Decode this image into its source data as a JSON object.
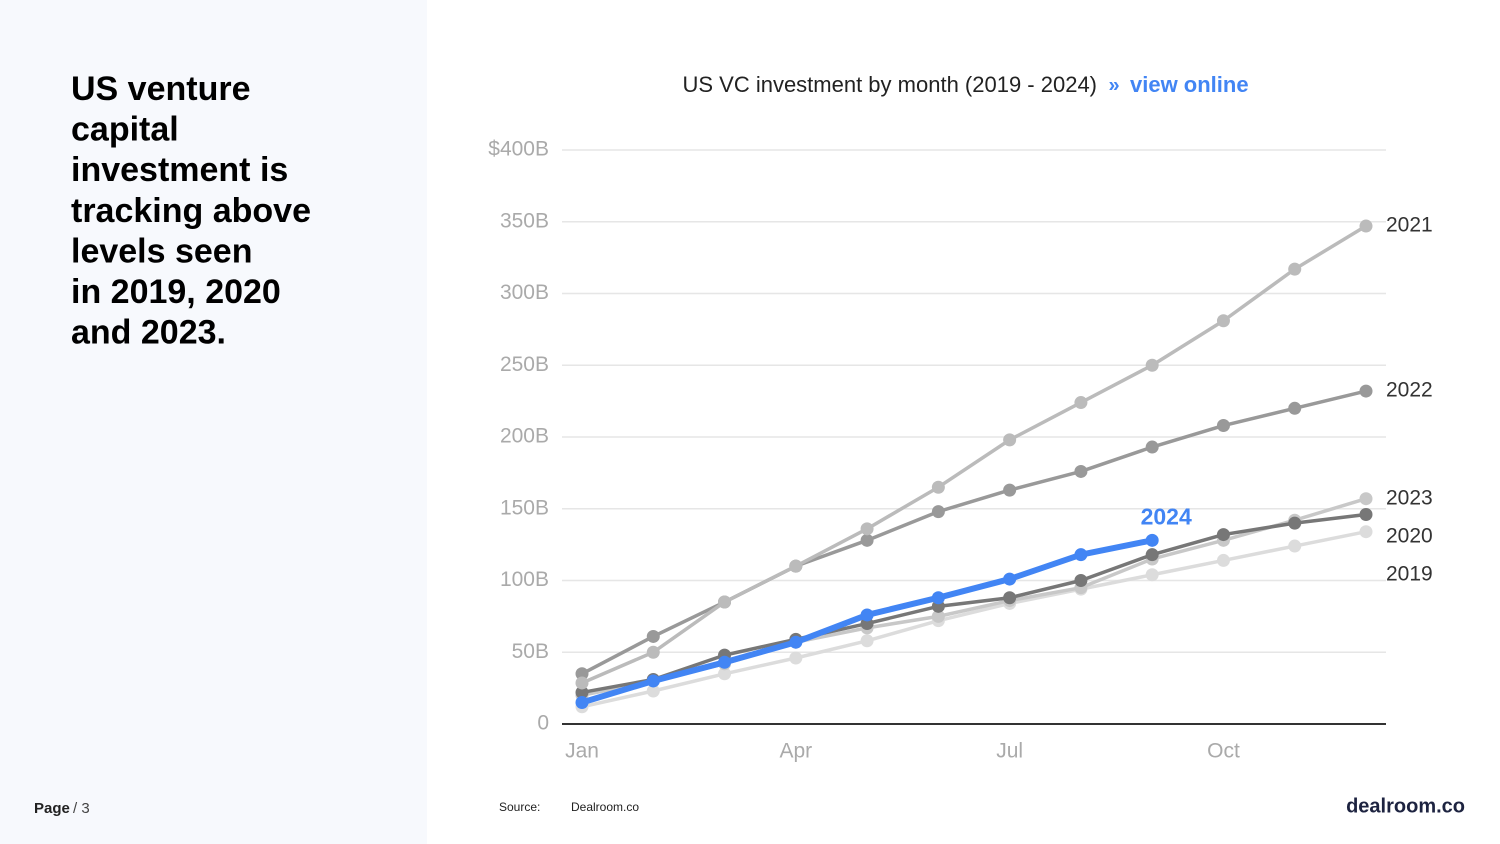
{
  "headline": [
    "US venture",
    "capital",
    "investment is",
    "tracking above",
    "levels seen",
    "in 2019, 2020",
    "and 2023."
  ],
  "footer": {
    "page_label": "Page",
    "page_number": "/ 3",
    "source_label": "Source:",
    "source": "Dealroom.co",
    "brand": "dealroom.co"
  },
  "chart_data": {
    "type": "line",
    "title": "US VC investment by month (2019 - 2024)",
    "link_marker": "»",
    "link": "view online",
    "categories": [
      "Jan",
      null,
      null,
      "Apr",
      null,
      null,
      "Jul",
      null,
      null,
      "Oct",
      null,
      null
    ],
    "ylim": [
      0,
      400
    ],
    "yticks": [
      0,
      {
        "value": 50,
        "label": "50B"
      },
      {
        "value": 100,
        "label": "100B"
      },
      {
        "value": 150,
        "label": "150B"
      },
      {
        "value": 200,
        "label": "200B"
      },
      {
        "value": 250,
        "label": "250B"
      },
      {
        "value": 300,
        "label": "300B"
      },
      {
        "value": 350,
        "label": "350B"
      },
      {
        "value": 400,
        "label": "$400B"
      }
    ],
    "grid": true,
    "series": [
      {
        "name": "2019",
        "color": "#dcdcdc",
        "values": [
          12,
          23,
          35,
          46,
          58,
          72,
          84,
          94,
          104,
          114,
          124,
          134
        ]
      },
      {
        "name": "2023",
        "color": "#c8c8c8",
        "values": [
          20,
          30,
          42,
          57,
          67,
          75,
          86,
          95,
          115,
          128,
          142,
          157
        ]
      },
      {
        "name": "2020",
        "color": "#777777",
        "values": [
          22,
          31,
          48,
          59,
          70,
          82,
          88,
          100,
          118,
          132,
          140,
          146
        ]
      },
      {
        "name": "2022",
        "color": "#999999",
        "values": [
          35,
          61,
          85,
          110,
          128,
          148,
          163,
          176,
          193,
          208,
          220,
          232
        ]
      },
      {
        "name": "2021",
        "color": "#bbbbbb",
        "values": [
          28.6,
          50,
          85,
          110,
          136,
          165,
          198,
          224,
          250,
          281,
          317,
          347
        ]
      },
      {
        "name": "2024",
        "color": "#4285f4",
        "values": [
          15,
          30,
          43,
          57,
          76,
          88,
          101,
          118,
          128,
          null,
          null,
          null
        ]
      }
    ]
  }
}
